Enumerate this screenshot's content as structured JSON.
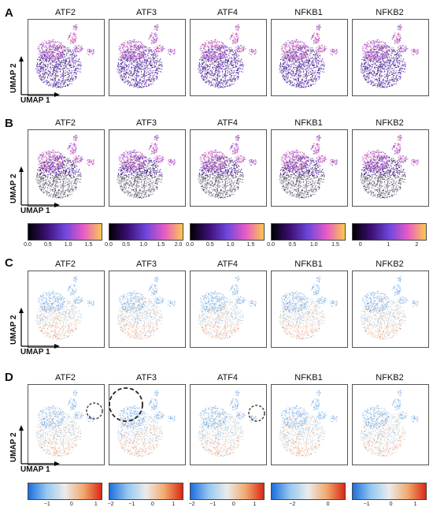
{
  "panels": [
    {
      "letter": "A",
      "genes": [
        "ATF2",
        "ATF3",
        "ATF4",
        "NFKB1",
        "NFKB2"
      ],
      "scheme": "magma",
      "show_colorbars": false
    },
    {
      "letter": "B",
      "genes": [
        "ATF2",
        "ATF3",
        "ATF4",
        "NFKB1",
        "NFKB2"
      ],
      "scheme": "magma",
      "show_colorbars": true
    },
    {
      "letter": "C",
      "genes": [
        "ATF2",
        "ATF3",
        "ATF4",
        "NFKB1",
        "NFKB2"
      ],
      "scheme": "diverging",
      "show_colorbars": false
    },
    {
      "letter": "D",
      "genes": [
        "ATF2",
        "ATF3",
        "ATF4",
        "NFKB1",
        "NFKB2"
      ],
      "scheme": "diverging",
      "show_colorbars": true
    }
  ],
  "axes": {
    "x_label": "UMAP 1",
    "y_label": "UMAP 2"
  },
  "colorbars_B": [
    {
      "ticks": [
        "0.0",
        "0.5",
        "1.0",
        "1.5"
      ],
      "positions": [
        0,
        0.5,
        1.0,
        1.5
      ],
      "range": [
        0,
        1.8
      ]
    },
    {
      "ticks": [
        "0.0",
        "0.5",
        "1.0",
        "1.5",
        "2.0"
      ],
      "positions": [
        0,
        0.5,
        1.0,
        1.5,
        2.0
      ],
      "range": [
        0,
        2.1
      ]
    },
    {
      "ticks": [
        "0.0",
        "0.5",
        "1.0",
        "1.5"
      ],
      "positions": [
        0,
        0.5,
        1.0,
        1.5
      ],
      "range": [
        0,
        1.8
      ]
    },
    {
      "ticks": [
        "0.0",
        "0.5",
        "1.0",
        "1.5"
      ],
      "positions": [
        0,
        0.5,
        1.0,
        1.5
      ],
      "range": [
        0,
        1.7
      ]
    },
    {
      "ticks": [
        "0",
        "1",
        "2"
      ],
      "positions": [
        0,
        1,
        2
      ],
      "range": [
        -0.3,
        2.3
      ]
    }
  ],
  "colorbars_D": [
    {
      "ticks": [
        "−1",
        "0",
        "1"
      ],
      "positions": [
        -1,
        0,
        1
      ],
      "range": [
        -1.8,
        1.2
      ]
    },
    {
      "ticks": [
        "−2",
        "−1",
        "0",
        "1"
      ],
      "positions": [
        -2,
        -1,
        0,
        1
      ],
      "range": [
        -2.1,
        1.4
      ]
    },
    {
      "ticks": [
        "−2",
        "−1",
        "0",
        "1"
      ],
      "positions": [
        -2,
        -1,
        0,
        1
      ],
      "range": [
        -2.1,
        1.4
      ]
    },
    {
      "ticks": [
        "−2",
        "0"
      ],
      "positions": [
        -2,
        0
      ],
      "range": [
        -3.2,
        0.9
      ]
    },
    {
      "ticks": [
        "−1",
        "0",
        "1"
      ],
      "positions": [
        -1,
        0,
        1
      ],
      "range": [
        -1.6,
        1.4
      ]
    }
  ],
  "chart_data": {
    "type": "scatter",
    "description_free": true,
    "x_label": "UMAP 1",
    "y_label": "UMAP 2",
    "series": [
      {
        "name": "ATF2"
      },
      {
        "name": "ATF3"
      },
      {
        "name": "ATF4"
      },
      {
        "name": "NFKB1"
      },
      {
        "name": "NFKB2"
      }
    ]
  }
}
